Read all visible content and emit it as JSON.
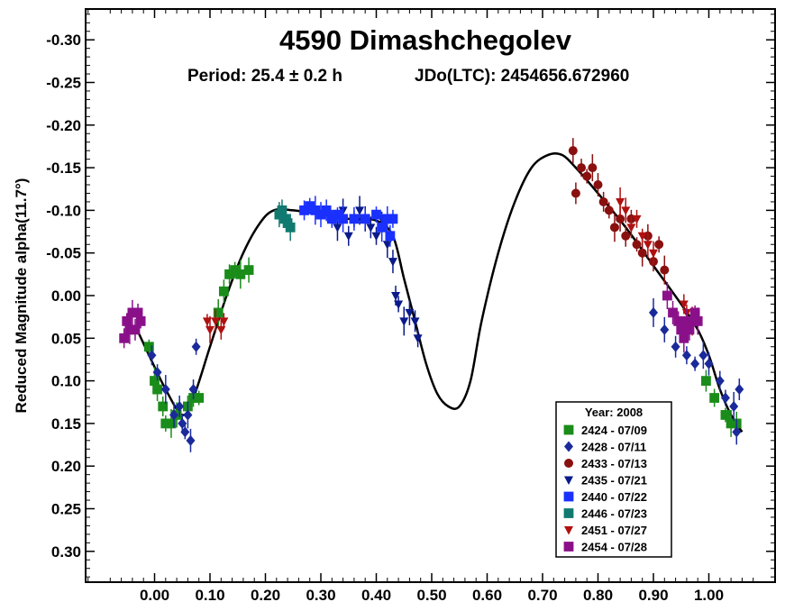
{
  "chart_data": {
    "type": "scatter",
    "title": "4590 Dimashchegolev",
    "subtitle_period": "Period: 25.4 ± 0.2 h",
    "subtitle_epoch": "JDo(LTC): 2454656.672960",
    "ylabel": "Reduced Magnitude alpha(11.7°)",
    "xlabel": "",
    "xlim": [
      -0.12,
      1.12
    ],
    "ylim": [
      0.34,
      -0.34
    ],
    "y_inverted": true,
    "x_ticks": [
      0.0,
      0.1,
      0.2,
      0.3,
      0.4,
      0.5,
      0.6,
      0.7,
      0.8,
      0.9,
      1.0
    ],
    "x_tick_labels": [
      "0.00",
      "0.10",
      "0.20",
      "0.30",
      "0.40",
      "0.50",
      "0.60",
      "0.70",
      "0.80",
      "0.90",
      "1.00"
    ],
    "y_ticks": [
      -0.3,
      -0.25,
      -0.2,
      -0.15,
      -0.1,
      -0.05,
      0.0,
      0.05,
      0.1,
      0.15,
      0.2,
      0.25,
      0.3
    ],
    "y_tick_labels": [
      "-0.30",
      "-0.25",
      "-0.20",
      "-0.15",
      "-0.10",
      "-0.05",
      "0.00",
      "0.05",
      "0.10",
      "0.15",
      "0.20",
      "0.25",
      "0.30"
    ],
    "grid": false,
    "legend": {
      "title": "Year: 2008",
      "placement": "bottom-right",
      "entries": [
        {
          "label": "2424 - 07/09",
          "color": "#1a8c1a",
          "marker": "square"
        },
        {
          "label": "2428 - 07/11",
          "color": "#1a2a9a",
          "marker": "diamond"
        },
        {
          "label": "2433 - 07/13",
          "color": "#8a1010",
          "marker": "circle"
        },
        {
          "label": "2435 - 07/21",
          "color": "#0a1a8a",
          "marker": "triangle-down"
        },
        {
          "label": "2440 - 07/22",
          "color": "#1a30ff",
          "marker": "square"
        },
        {
          "label": "2446 - 07/23",
          "color": "#117a70",
          "marker": "square"
        },
        {
          "label": "2451 - 07/27",
          "color": "#b01010",
          "marker": "triangle-down"
        },
        {
          "label": "2454 - 07/28",
          "color": "#8a108a",
          "marker": "square"
        }
      ]
    },
    "fit_curve": [
      [
        -0.035,
        0.035
      ],
      [
        -0.01,
        0.07
      ],
      [
        0.02,
        0.11
      ],
      [
        0.05,
        0.14
      ],
      [
        0.07,
        0.12
      ],
      [
        0.1,
        0.06
      ],
      [
        0.13,
        0.0
      ],
      [
        0.16,
        -0.05
      ],
      [
        0.19,
        -0.085
      ],
      [
        0.215,
        -0.1
      ],
      [
        0.25,
        -0.1
      ],
      [
        0.3,
        -0.095
      ],
      [
        0.35,
        -0.09
      ],
      [
        0.4,
        -0.088
      ],
      [
        0.43,
        -0.07
      ],
      [
        0.45,
        -0.02
      ],
      [
        0.47,
        0.03
      ],
      [
        0.49,
        0.08
      ],
      [
        0.51,
        0.115
      ],
      [
        0.53,
        0.13
      ],
      [
        0.55,
        0.13
      ],
      [
        0.57,
        0.1
      ],
      [
        0.59,
        0.03
      ],
      [
        0.62,
        -0.05
      ],
      [
        0.65,
        -0.11
      ],
      [
        0.68,
        -0.15
      ],
      [
        0.71,
        -0.165
      ],
      [
        0.735,
        -0.165
      ],
      [
        0.76,
        -0.15
      ],
      [
        0.8,
        -0.12
      ],
      [
        0.85,
        -0.08
      ],
      [
        0.9,
        -0.035
      ],
      [
        0.95,
        0.01
      ],
      [
        0.98,
        0.04
      ],
      [
        1.0,
        0.07
      ],
      [
        1.02,
        0.11
      ],
      [
        1.04,
        0.14
      ],
      [
        1.06,
        0.16
      ]
    ],
    "series": [
      {
        "name": "2424 - 07/09",
        "color": "#1a8c1a",
        "marker": "square",
        "points": [
          [
            -0.01,
            0.06
          ],
          [
            0.0,
            0.1
          ],
          [
            0.005,
            0.11
          ],
          [
            0.015,
            0.13
          ],
          [
            0.02,
            0.15
          ],
          [
            0.03,
            0.15
          ],
          [
            0.04,
            0.14
          ],
          [
            0.06,
            0.13
          ],
          [
            0.07,
            0.12
          ],
          [
            0.08,
            0.12
          ],
          [
            0.115,
            0.02
          ],
          [
            0.125,
            -0.005
          ],
          [
            0.135,
            -0.025
          ],
          [
            0.145,
            -0.03
          ],
          [
            0.155,
            -0.025
          ],
          [
            0.17,
            -0.03
          ],
          [
            0.995,
            0.1
          ],
          [
            1.01,
            0.12
          ],
          [
            1.03,
            0.14
          ],
          [
            1.04,
            0.15
          ],
          [
            1.05,
            0.15
          ]
        ]
      },
      {
        "name": "2428 - 07/11",
        "color": "#1a2a9a",
        "marker": "diamond",
        "points": [
          [
            -0.005,
            0.07
          ],
          [
            0.005,
            0.09
          ],
          [
            0.02,
            0.11
          ],
          [
            0.035,
            0.14
          ],
          [
            0.045,
            0.13
          ],
          [
            0.05,
            0.15
          ],
          [
            0.055,
            0.16
          ],
          [
            0.06,
            0.14
          ],
          [
            0.065,
            0.17
          ],
          [
            0.07,
            0.11
          ],
          [
            0.075,
            0.06
          ],
          [
            0.9,
            0.02
          ],
          [
            0.92,
            0.04
          ],
          [
            0.94,
            0.06
          ],
          [
            0.96,
            0.07
          ],
          [
            0.975,
            0.08
          ],
          [
            0.99,
            0.07
          ],
          [
            1.0,
            0.08
          ],
          [
            1.02,
            0.1
          ],
          [
            1.03,
            0.12
          ],
          [
            1.045,
            0.13
          ],
          [
            1.05,
            0.16
          ],
          [
            1.055,
            0.11
          ]
        ]
      },
      {
        "name": "2433 - 07/13",
        "color": "#8a1010",
        "marker": "circle",
        "points": [
          [
            0.755,
            -0.17
          ],
          [
            0.76,
            -0.12
          ],
          [
            0.77,
            -0.15
          ],
          [
            0.78,
            -0.14
          ],
          [
            0.79,
            -0.15
          ],
          [
            0.8,
            -0.13
          ],
          [
            0.81,
            -0.11
          ],
          [
            0.82,
            -0.1
          ],
          [
            0.83,
            -0.08
          ],
          [
            0.84,
            -0.09
          ],
          [
            0.85,
            -0.07
          ],
          [
            0.86,
            -0.09
          ],
          [
            0.87,
            -0.06
          ],
          [
            0.88,
            -0.05
          ],
          [
            0.89,
            -0.07
          ],
          [
            0.9,
            -0.04
          ],
          [
            0.91,
            -0.06
          ],
          [
            0.92,
            -0.03
          ]
        ]
      },
      {
        "name": "2435 - 07/21",
        "color": "#0a1a8a",
        "marker": "triangle-down",
        "points": [
          [
            0.32,
            -0.09
          ],
          [
            0.33,
            -0.08
          ],
          [
            0.34,
            -0.1
          ],
          [
            0.35,
            -0.07
          ],
          [
            0.36,
            -0.09
          ],
          [
            0.37,
            -0.1
          ],
          [
            0.38,
            -0.09
          ],
          [
            0.39,
            -0.08
          ],
          [
            0.4,
            -0.07
          ],
          [
            0.41,
            -0.09
          ],
          [
            0.42,
            -0.06
          ],
          [
            0.43,
            -0.04
          ],
          [
            0.435,
            0.0
          ],
          [
            0.44,
            0.01
          ],
          [
            0.45,
            0.03
          ],
          [
            0.46,
            0.02
          ],
          [
            0.47,
            0.03
          ],
          [
            0.475,
            0.05
          ]
        ]
      },
      {
        "name": "2440 - 07/22",
        "color": "#1a30ff",
        "marker": "square",
        "points": [
          [
            0.27,
            -0.1
          ],
          [
            0.28,
            -0.105
          ],
          [
            0.29,
            -0.1
          ],
          [
            0.3,
            -0.095
          ],
          [
            0.31,
            -0.1
          ],
          [
            0.32,
            -0.09
          ],
          [
            0.33,
            -0.095
          ],
          [
            0.34,
            -0.09
          ],
          [
            0.36,
            -0.09
          ],
          [
            0.38,
            -0.09
          ],
          [
            0.4,
            -0.095
          ],
          [
            0.41,
            -0.08
          ],
          [
            0.42,
            -0.09
          ],
          [
            0.425,
            -0.07
          ],
          [
            0.43,
            -0.09
          ]
        ]
      },
      {
        "name": "2446 - 07/23",
        "color": "#117a70",
        "marker": "square",
        "points": [
          [
            0.225,
            -0.095
          ],
          [
            0.23,
            -0.1
          ],
          [
            0.235,
            -0.09
          ],
          [
            0.24,
            -0.085
          ],
          [
            0.245,
            -0.08
          ]
        ]
      },
      {
        "name": "2451 - 07/27",
        "color": "#b01010",
        "marker": "triangle-down",
        "points": [
          [
            0.095,
            0.03
          ],
          [
            0.1,
            0.04
          ],
          [
            0.11,
            0.03
          ],
          [
            0.12,
            0.04
          ],
          [
            0.125,
            0.03
          ],
          [
            0.84,
            -0.11
          ],
          [
            0.85,
            -0.1
          ],
          [
            0.86,
            -0.08
          ],
          [
            0.87,
            -0.09
          ],
          [
            0.88,
            -0.07
          ],
          [
            0.89,
            -0.06
          ],
          [
            0.9,
            -0.05
          ],
          [
            0.955,
            0.01
          ],
          [
            0.96,
            0.02
          ],
          [
            0.97,
            0.03
          ]
        ]
      },
      {
        "name": "2454 - 07/28",
        "color": "#8a108a",
        "marker": "square",
        "points": [
          [
            -0.055,
            0.05
          ],
          [
            -0.05,
            0.03
          ],
          [
            -0.045,
            0.04
          ],
          [
            -0.04,
            0.02
          ],
          [
            -0.035,
            0.04
          ],
          [
            -0.03,
            0.02
          ],
          [
            -0.025,
            0.03
          ],
          [
            0.925,
            0.0
          ],
          [
            0.935,
            0.02
          ],
          [
            0.945,
            0.03
          ],
          [
            0.95,
            0.04
          ],
          [
            0.955,
            0.05
          ],
          [
            0.96,
            0.03
          ],
          [
            0.965,
            0.04
          ],
          [
            0.97,
            0.03
          ],
          [
            0.975,
            0.02
          ],
          [
            0.98,
            0.03
          ]
        ]
      }
    ]
  }
}
